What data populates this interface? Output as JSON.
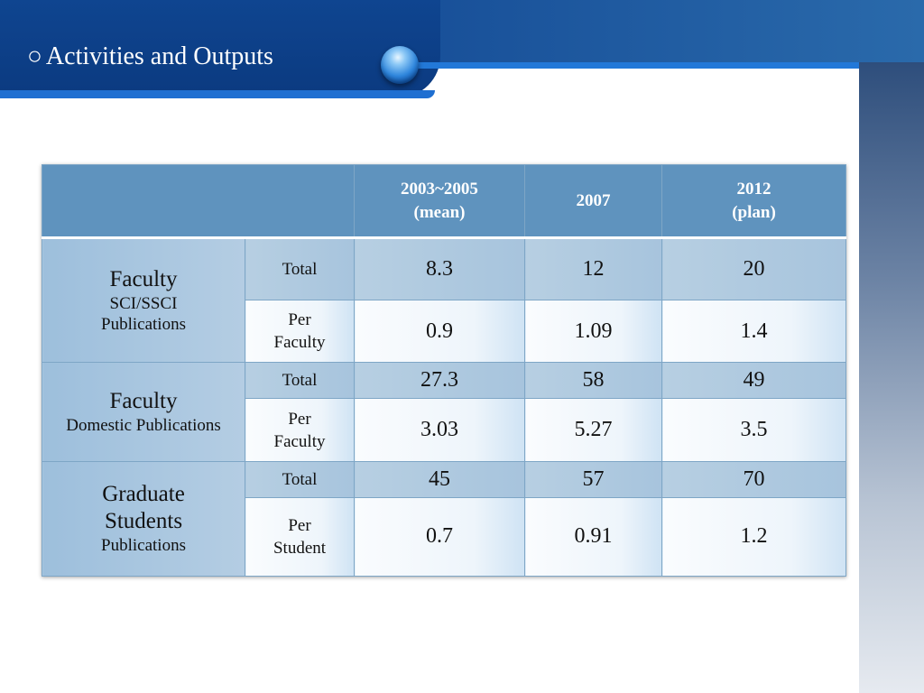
{
  "header": {
    "bullet": "○",
    "title": "Activities and Outputs"
  },
  "table": {
    "columns": [
      "",
      "2003~2005\n(mean)",
      "2007",
      "2012\n(plan)"
    ],
    "groups": [
      {
        "main": "Faculty",
        "sub": "SCI/SSCI\nPublications",
        "rows": [
          {
            "label": "Total",
            "values": [
              "8.3",
              "12",
              "20"
            ]
          },
          {
            "label": "Per\nFaculty",
            "values": [
              "0.9",
              "1.09",
              "1.4"
            ]
          }
        ]
      },
      {
        "main": "Faculty",
        "sub": "Domestic Publications",
        "rows": [
          {
            "label": "Total",
            "values": [
              "27.3",
              "58",
              "49"
            ]
          },
          {
            "label": "Per\nFaculty",
            "values": [
              "3.03",
              "5.27",
              "3.5"
            ]
          }
        ]
      },
      {
        "main": "Graduate\nStudents",
        "sub": "Publications",
        "rows": [
          {
            "label": "Total",
            "values": [
              "45",
              "57",
              "70"
            ]
          },
          {
            "label": "Per\nStudent",
            "values": [
              "0.7",
              "0.91",
              "1.2"
            ]
          }
        ]
      }
    ]
  },
  "colors": {
    "header_dark": "#0d3c86",
    "header_accent": "#1f6fd1",
    "table_header": "#5f93be",
    "row_total": "#b7cfe2",
    "row_per": "#eef5fb"
  }
}
